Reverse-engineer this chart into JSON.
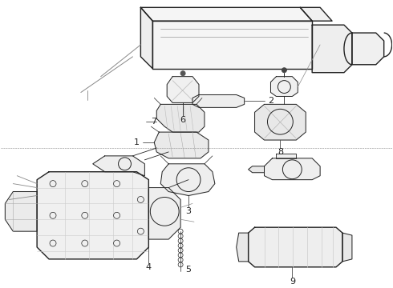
{
  "background_color": "#ffffff",
  "line_color": "#222222",
  "label_color": "#000000",
  "fig_width": 4.9,
  "fig_height": 3.6,
  "dpi": 100,
  "lw": 0.7,
  "lw_thick": 1.0
}
